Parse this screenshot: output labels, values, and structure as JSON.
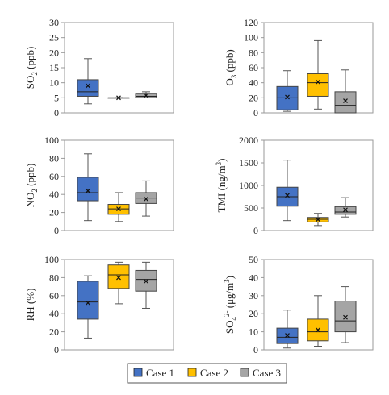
{
  "legend": {
    "entries": [
      {
        "label": "Case 1",
        "color": "#4472C4"
      },
      {
        "label": "Case 2",
        "color": "#FFC000"
      },
      {
        "label": "Case 3",
        "color": "#A5A5A5"
      }
    ]
  },
  "chart_data": [
    {
      "type": "box",
      "ylabel": "SO2 (ppb)",
      "ylim": [
        0,
        30
      ],
      "yticks": [
        0,
        5,
        10,
        15,
        20,
        25,
        30
      ],
      "series": [
        {
          "name": "Case 1",
          "min": 3,
          "q1": 5.5,
          "median": 7,
          "q3": 11,
          "max": 18,
          "mean": 9
        },
        {
          "name": "Case 2",
          "min": 5,
          "q1": 5,
          "median": 5,
          "q3": 5,
          "max": 5,
          "mean": 5
        },
        {
          "name": "Case 3",
          "min": 5,
          "q1": 5,
          "median": 5.5,
          "q3": 6.5,
          "max": 7,
          "mean": 5.8
        }
      ]
    },
    {
      "type": "box",
      "ylabel": "O3 (ppb)",
      "ylim": [
        0,
        120
      ],
      "yticks": [
        0,
        20,
        40,
        60,
        80,
        100,
        120
      ],
      "series": [
        {
          "name": "Case 1",
          "min": 2,
          "q1": 4,
          "median": 20,
          "q3": 35,
          "max": 56,
          "mean": 21
        },
        {
          "name": "Case 2",
          "min": 5,
          "q1": 22,
          "median": 40,
          "q3": 52,
          "max": 96,
          "mean": 41
        },
        {
          "name": "Case 3",
          "min": 0,
          "q1": 0,
          "median": 10,
          "q3": 28,
          "max": 57,
          "mean": 16
        }
      ]
    },
    {
      "type": "box",
      "ylabel": "NO2 (ppb)",
      "ylim": [
        0,
        100
      ],
      "yticks": [
        0,
        20,
        40,
        60,
        80,
        100
      ],
      "series": [
        {
          "name": "Case 1",
          "min": 11,
          "q1": 33,
          "median": 42,
          "q3": 59,
          "max": 85,
          "mean": 44
        },
        {
          "name": "Case 2",
          "min": 10,
          "q1": 18,
          "median": 24,
          "q3": 29,
          "max": 42,
          "mean": 24
        },
        {
          "name": "Case 3",
          "min": 16,
          "q1": 30,
          "median": 36,
          "q3": 42,
          "max": 55,
          "mean": 35
        }
      ]
    },
    {
      "type": "box",
      "ylabel": "TMI (ng/m3)",
      "ylim": [
        0,
        2000
      ],
      "yticks": [
        0,
        500,
        1000,
        1500,
        2000
      ],
      "series": [
        {
          "name": "Case 1",
          "min": 220,
          "q1": 540,
          "median": 750,
          "q3": 960,
          "max": 1560,
          "mean": 780
        },
        {
          "name": "Case 2",
          "min": 110,
          "q1": 190,
          "median": 250,
          "q3": 290,
          "max": 380,
          "mean": 245
        },
        {
          "name": "Case 3",
          "min": 300,
          "q1": 360,
          "median": 410,
          "q3": 530,
          "max": 730,
          "mean": 460
        }
      ]
    },
    {
      "type": "box",
      "ylabel": "RH (%)",
      "ylim": [
        0,
        100
      ],
      "yticks": [
        0,
        20,
        40,
        60,
        80,
        100
      ],
      "series": [
        {
          "name": "Case 1",
          "min": 13,
          "q1": 34,
          "median": 53,
          "q3": 76,
          "max": 82,
          "mean": 52
        },
        {
          "name": "Case 2",
          "min": 51,
          "q1": 68,
          "median": 83,
          "q3": 94,
          "max": 97,
          "mean": 80
        },
        {
          "name": "Case 3",
          "min": 46,
          "q1": 65,
          "median": 78,
          "q3": 88,
          "max": 97,
          "mean": 76
        }
      ]
    },
    {
      "type": "box",
      "ylabel": "SO4 2- (μg/m3)",
      "ylim": [
        0,
        50
      ],
      "yticks": [
        0,
        10,
        20,
        30,
        40,
        50
      ],
      "series": [
        {
          "name": "Case 1",
          "min": 1,
          "q1": 3.5,
          "median": 7,
          "q3": 12,
          "max": 22,
          "mean": 8
        },
        {
          "name": "Case 2",
          "min": 2,
          "q1": 5,
          "median": 10,
          "q3": 17,
          "max": 30,
          "mean": 11
        },
        {
          "name": "Case 3",
          "min": 4,
          "q1": 10,
          "median": 16,
          "q3": 27,
          "max": 35,
          "mean": 18
        }
      ]
    }
  ]
}
